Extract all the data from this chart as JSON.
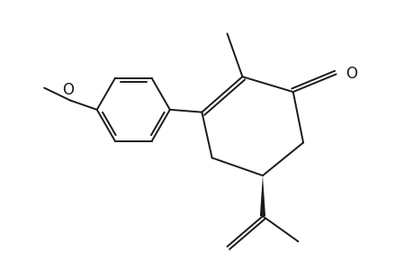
{
  "bg_color": "#ffffff",
  "line_color": "#1a1a1a",
  "line_width": 1.4,
  "figsize": [
    4.6,
    3.0
  ],
  "dpi": 100
}
